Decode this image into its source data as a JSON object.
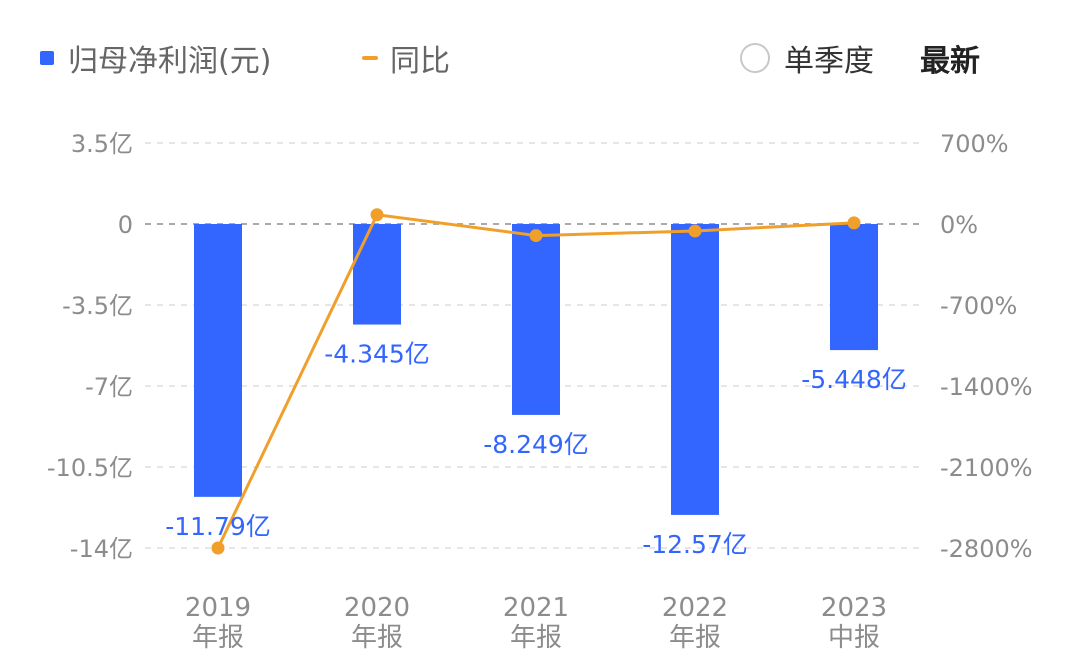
{
  "legend": {
    "bar_label": "归母净利润(元)",
    "line_label": "同比",
    "single_quarter_label": "单季度",
    "latest_label": "最新"
  },
  "colors": {
    "bar": "#3366FF",
    "line": "#F0A02A",
    "label": "#3366FF",
    "tick": "#8C8C8C",
    "grid": "#E6E6E6",
    "zero": "#AAAAAA"
  },
  "chart_data": {
    "type": "bar",
    "categories": [
      [
        "2019",
        "年报"
      ],
      [
        "2020",
        "年报"
      ],
      [
        "2021",
        "年报"
      ],
      [
        "2022",
        "年报"
      ],
      [
        "2023",
        "中报"
      ]
    ],
    "series": [
      {
        "name": "归母净利润(元)",
        "type": "bar",
        "axis": "left",
        "values": [
          -11.79,
          -4.345,
          -8.249,
          -12.57,
          -5.448
        ],
        "labels": [
          "-11.79亿",
          "-4.345亿",
          "-8.249亿",
          "-12.57亿",
          "-5.448亿"
        ]
      },
      {
        "name": "同比",
        "type": "line",
        "axis": "right",
        "values": [
          -2800,
          80,
          -100,
          -60,
          10
        ]
      }
    ],
    "y_left": {
      "range": [
        -14,
        3.5
      ],
      "ticks": [
        3.5,
        0,
        -3.5,
        -7,
        -10.5,
        -14
      ],
      "tick_labels": [
        "3.5亿",
        "0",
        "-3.5亿",
        "-7亿",
        "-10.5亿",
        "-14亿"
      ]
    },
    "y_right": {
      "range": [
        -2800,
        700
      ],
      "ticks": [
        700,
        0,
        -700,
        -1400,
        -2100,
        -2800
      ],
      "tick_labels": [
        "700%",
        "0%",
        "-700%",
        "-1400%",
        "-2100%",
        "-2800%"
      ]
    },
    "grid": true,
    "legend_position": "top-left"
  }
}
